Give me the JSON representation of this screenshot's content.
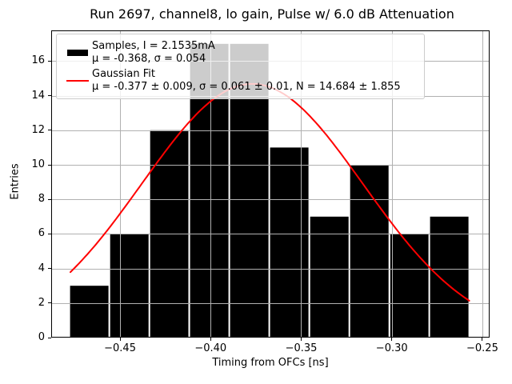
{
  "title": "Run 2697, channel8, lo gain, Pulse w/ 6.0 dB Attenuation",
  "axes": {
    "xlabel": "Timing from OFCs [ns]",
    "ylabel": "Entries",
    "x_tick_values": [
      -0.45,
      -0.4,
      -0.35,
      -0.3,
      -0.25
    ],
    "x_tick_labels": [
      "−0.45",
      "−0.40",
      "−0.35",
      "−0.30",
      "−0.25"
    ],
    "y_tick_values": [
      0,
      2,
      4,
      6,
      8,
      10,
      12,
      14,
      16
    ],
    "y_tick_labels": [
      "0",
      "2",
      "4",
      "6",
      "8",
      "10",
      "12",
      "14",
      "16"
    ]
  },
  "legend": {
    "entries": [
      {
        "swatch": "black-patch",
        "line1": "Samples, I = 2.1535mA",
        "line2": "μ = -0.368, σ = 0.054"
      },
      {
        "swatch": "red-line",
        "line1": "Gaussian Fit",
        "line2": "μ = -0.377 ± 0.009, σ = 0.061 ± 0.01, N = 14.684 ± 1.855"
      }
    ]
  },
  "chart_data": {
    "type": "bar",
    "subtype": "histogram",
    "title": "Run 2697, channel8, lo gain, Pulse w/ 6.0 dB Attenuation",
    "xlabel": "Timing from OFCs [ns]",
    "ylabel": "Entries",
    "bin_edges": [
      -0.478,
      -0.4559,
      -0.4338,
      -0.4118,
      -0.3897,
      -0.3676,
      -0.3455,
      -0.3234,
      -0.3013,
      -0.2793,
      -0.2572
    ],
    "counts": [
      3,
      6,
      12,
      17,
      17,
      11,
      7,
      10,
      6,
      7
    ],
    "fit": {
      "type": "gaussian",
      "mu": -0.377,
      "mu_err": 0.009,
      "sigma": 0.061,
      "sigma_err": 0.01,
      "amplitude": 14.684,
      "amplitude_err": 1.855,
      "x_range": [
        -0.4774,
        -0.2572
      ]
    },
    "sample_stats": {
      "current_mA": 2.1535,
      "mu": -0.368,
      "sigma": 0.054
    },
    "xlim": [
      -0.488,
      -0.246
    ],
    "ylim": [
      0,
      17.78
    ],
    "grid": true,
    "grid_above_bars": true,
    "legend_position": "upper left",
    "colors": {
      "bar": "#000000",
      "fit_line": "#ff0000",
      "grid": "#b0b0b0",
      "spine": "#000000"
    }
  }
}
